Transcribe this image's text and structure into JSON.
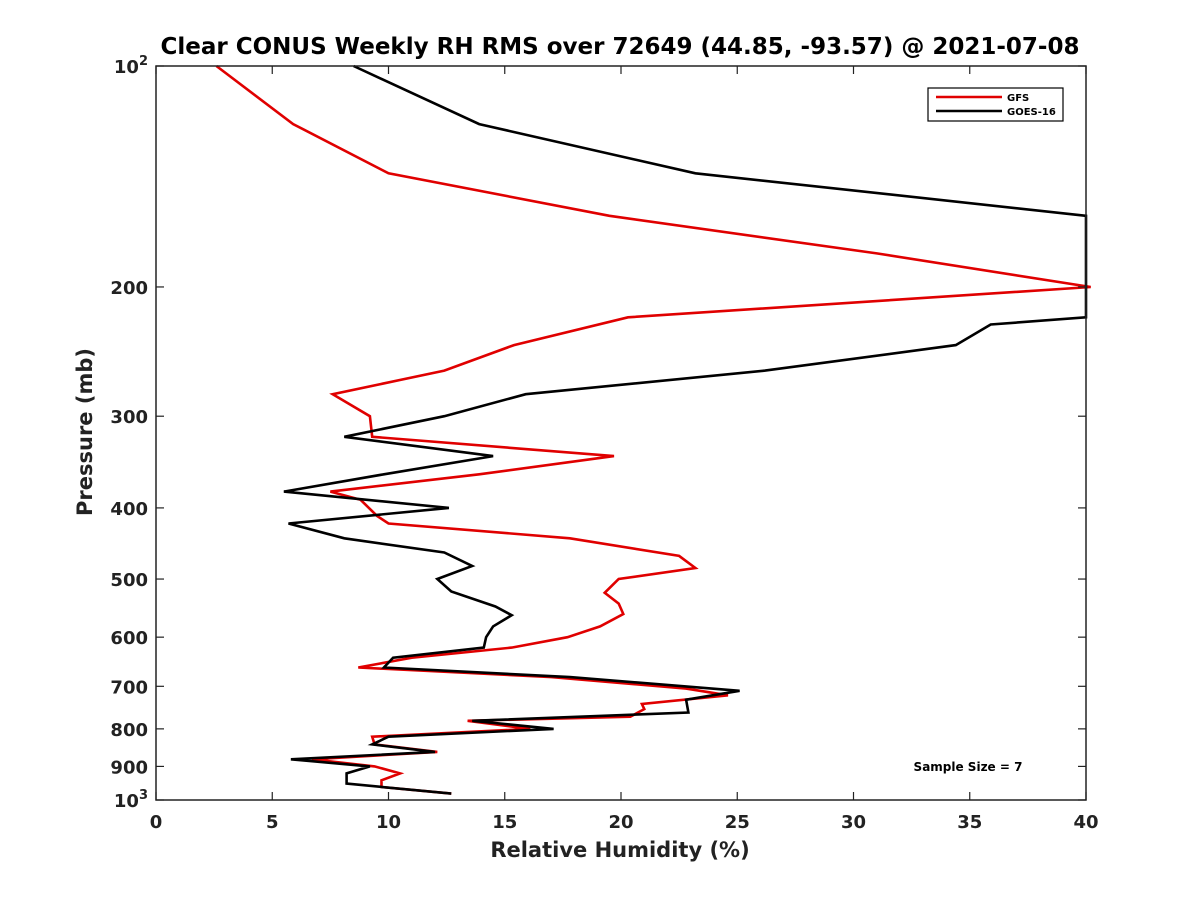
{
  "chart_data": {
    "type": "line",
    "title": "Clear CONUS Weekly RH RMS over 72649 (44.85, -93.57) @ 2021-07-08",
    "xlabel": "Relative Humidity (%)",
    "ylabel": "Pressure (mb)",
    "xlim": [
      0,
      40
    ],
    "ylim": [
      100,
      1000
    ],
    "y_scale": "log",
    "y_reversed": true,
    "x_ticks": [
      "0",
      "5",
      "10",
      "15",
      "20",
      "25",
      "30",
      "35",
      "40"
    ],
    "y_ticks": [
      {
        "value": 100,
        "base": "10",
        "exp": "2"
      },
      {
        "value": 200,
        "label": "200"
      },
      {
        "value": 300,
        "label": "300"
      },
      {
        "value": 400,
        "label": "400"
      },
      {
        "value": 500,
        "label": "500"
      },
      {
        "value": 600,
        "label": "600"
      },
      {
        "value": 700,
        "label": "700"
      },
      {
        "value": 800,
        "label": "800"
      },
      {
        "value": 900,
        "label": "900"
      },
      {
        "value": 1000,
        "base": "10",
        "exp": "3"
      }
    ],
    "legend_position": "top-right",
    "annotation": "Sample Size = 7",
    "series": [
      {
        "name": "GFS",
        "color": "#e00000",
        "points": [
          [
            2.6,
            100
          ],
          [
            5.9,
            120
          ],
          [
            10,
            140
          ],
          [
            19.5,
            160
          ],
          [
            31,
            180
          ],
          [
            40.2,
            200
          ],
          [
            20.3,
            220
          ],
          [
            15.4,
            240
          ],
          [
            12.4,
            260
          ],
          [
            7.6,
            280
          ],
          [
            9.2,
            300
          ],
          [
            9.3,
            320
          ],
          [
            19.7,
            340
          ],
          [
            13.9,
            360
          ],
          [
            7.5,
            380
          ],
          [
            8.8,
            390
          ],
          [
            9.5,
            410
          ],
          [
            10,
            420
          ],
          [
            17.8,
            440
          ],
          [
            22.5,
            465
          ],
          [
            23.2,
            483
          ],
          [
            19.9,
            500
          ],
          [
            19.3,
            522
          ],
          [
            19.9,
            540
          ],
          [
            20.1,
            558
          ],
          [
            19.1,
            580
          ],
          [
            17.7,
            600
          ],
          [
            15.3,
            620
          ],
          [
            11,
            640
          ],
          [
            8.7,
            660
          ],
          [
            17,
            680
          ],
          [
            22.8,
            705
          ],
          [
            24.6,
            720
          ],
          [
            20.9,
            740
          ],
          [
            21,
            752
          ],
          [
            20.4,
            770
          ],
          [
            13.4,
            780
          ],
          [
            16.1,
            800
          ],
          [
            9.3,
            820
          ],
          [
            9.4,
            840
          ],
          [
            12.1,
            860
          ],
          [
            6.7,
            880
          ],
          [
            9.4,
            900
          ],
          [
            10.5,
            920
          ],
          [
            9.7,
            940
          ],
          [
            9.7,
            960
          ],
          [
            12.7,
            980
          ]
        ]
      },
      {
        "name": "GOES-16",
        "color": "#000000",
        "points": [
          [
            8.5,
            100
          ],
          [
            13.9,
            120
          ],
          [
            23.2,
            140
          ],
          [
            40,
            160
          ],
          [
            40,
            220
          ],
          [
            35.9,
            225
          ],
          [
            34.4,
            240
          ],
          [
            26.2,
            260
          ],
          [
            15.9,
            280
          ],
          [
            12.4,
            300
          ],
          [
            8.1,
            320
          ],
          [
            14.5,
            340
          ],
          [
            9.8,
            360
          ],
          [
            5.5,
            380
          ],
          [
            12.6,
            400
          ],
          [
            5.7,
            420
          ],
          [
            8.1,
            440
          ],
          [
            12.4,
            460
          ],
          [
            13.6,
            480
          ],
          [
            12.1,
            500
          ],
          [
            12.7,
            520
          ],
          [
            14.6,
            545
          ],
          [
            15.3,
            560
          ],
          [
            14.5,
            580
          ],
          [
            14.2,
            600
          ],
          [
            14.1,
            620
          ],
          [
            10.2,
            640
          ],
          [
            9.8,
            660
          ],
          [
            17.8,
            680
          ],
          [
            25.1,
            710
          ],
          [
            22.8,
            730
          ],
          [
            22.9,
            760
          ],
          [
            13.6,
            780
          ],
          [
            17.1,
            800
          ],
          [
            10,
            820
          ],
          [
            9.3,
            840
          ],
          [
            12.0,
            860
          ],
          [
            5.8,
            880
          ],
          [
            9.2,
            900
          ],
          [
            8.2,
            920
          ],
          [
            8.2,
            950
          ],
          [
            12.7,
            980
          ]
        ]
      }
    ]
  }
}
